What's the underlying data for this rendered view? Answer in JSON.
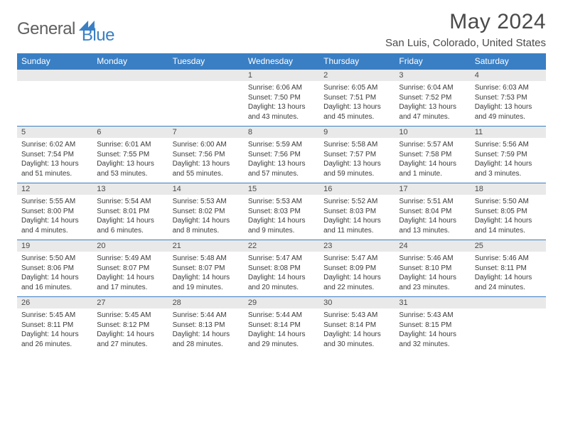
{
  "brand": {
    "part1": "General",
    "part2": "Blue"
  },
  "title": "May 2024",
  "location": "San Luis, Colorado, United States",
  "colors": {
    "accent": "#3a7fc4",
    "header_text": "#ffffff",
    "daynum_bg": "#e9e9e9",
    "text": "#4a4a4a",
    "body_text": "#3a3a3a",
    "background": "#ffffff"
  },
  "typography": {
    "title_fontsize": 30,
    "location_fontsize": 15,
    "weekday_fontsize": 12,
    "daynum_fontsize": 11,
    "body_fontsize": 10
  },
  "weekdays": [
    "Sunday",
    "Monday",
    "Tuesday",
    "Wednesday",
    "Thursday",
    "Friday",
    "Saturday"
  ],
  "layout": {
    "first_weekday_index": 3,
    "days_in_month": 31,
    "weeks": 5
  },
  "days": {
    "1": {
      "sunrise": "6:06 AM",
      "sunset": "7:50 PM",
      "daylight": "13 hours and 43 minutes."
    },
    "2": {
      "sunrise": "6:05 AM",
      "sunset": "7:51 PM",
      "daylight": "13 hours and 45 minutes."
    },
    "3": {
      "sunrise": "6:04 AM",
      "sunset": "7:52 PM",
      "daylight": "13 hours and 47 minutes."
    },
    "4": {
      "sunrise": "6:03 AM",
      "sunset": "7:53 PM",
      "daylight": "13 hours and 49 minutes."
    },
    "5": {
      "sunrise": "6:02 AM",
      "sunset": "7:54 PM",
      "daylight": "13 hours and 51 minutes."
    },
    "6": {
      "sunrise": "6:01 AM",
      "sunset": "7:55 PM",
      "daylight": "13 hours and 53 minutes."
    },
    "7": {
      "sunrise": "6:00 AM",
      "sunset": "7:56 PM",
      "daylight": "13 hours and 55 minutes."
    },
    "8": {
      "sunrise": "5:59 AM",
      "sunset": "7:56 PM",
      "daylight": "13 hours and 57 minutes."
    },
    "9": {
      "sunrise": "5:58 AM",
      "sunset": "7:57 PM",
      "daylight": "13 hours and 59 minutes."
    },
    "10": {
      "sunrise": "5:57 AM",
      "sunset": "7:58 PM",
      "daylight": "14 hours and 1 minute."
    },
    "11": {
      "sunrise": "5:56 AM",
      "sunset": "7:59 PM",
      "daylight": "14 hours and 3 minutes."
    },
    "12": {
      "sunrise": "5:55 AM",
      "sunset": "8:00 PM",
      "daylight": "14 hours and 4 minutes."
    },
    "13": {
      "sunrise": "5:54 AM",
      "sunset": "8:01 PM",
      "daylight": "14 hours and 6 minutes."
    },
    "14": {
      "sunrise": "5:53 AM",
      "sunset": "8:02 PM",
      "daylight": "14 hours and 8 minutes."
    },
    "15": {
      "sunrise": "5:53 AM",
      "sunset": "8:03 PM",
      "daylight": "14 hours and 9 minutes."
    },
    "16": {
      "sunrise": "5:52 AM",
      "sunset": "8:03 PM",
      "daylight": "14 hours and 11 minutes."
    },
    "17": {
      "sunrise": "5:51 AM",
      "sunset": "8:04 PM",
      "daylight": "14 hours and 13 minutes."
    },
    "18": {
      "sunrise": "5:50 AM",
      "sunset": "8:05 PM",
      "daylight": "14 hours and 14 minutes."
    },
    "19": {
      "sunrise": "5:50 AM",
      "sunset": "8:06 PM",
      "daylight": "14 hours and 16 minutes."
    },
    "20": {
      "sunrise": "5:49 AM",
      "sunset": "8:07 PM",
      "daylight": "14 hours and 17 minutes."
    },
    "21": {
      "sunrise": "5:48 AM",
      "sunset": "8:07 PM",
      "daylight": "14 hours and 19 minutes."
    },
    "22": {
      "sunrise": "5:47 AM",
      "sunset": "8:08 PM",
      "daylight": "14 hours and 20 minutes."
    },
    "23": {
      "sunrise": "5:47 AM",
      "sunset": "8:09 PM",
      "daylight": "14 hours and 22 minutes."
    },
    "24": {
      "sunrise": "5:46 AM",
      "sunset": "8:10 PM",
      "daylight": "14 hours and 23 minutes."
    },
    "25": {
      "sunrise": "5:46 AM",
      "sunset": "8:11 PM",
      "daylight": "14 hours and 24 minutes."
    },
    "26": {
      "sunrise": "5:45 AM",
      "sunset": "8:11 PM",
      "daylight": "14 hours and 26 minutes."
    },
    "27": {
      "sunrise": "5:45 AM",
      "sunset": "8:12 PM",
      "daylight": "14 hours and 27 minutes."
    },
    "28": {
      "sunrise": "5:44 AM",
      "sunset": "8:13 PM",
      "daylight": "14 hours and 28 minutes."
    },
    "29": {
      "sunrise": "5:44 AM",
      "sunset": "8:14 PM",
      "daylight": "14 hours and 29 minutes."
    },
    "30": {
      "sunrise": "5:43 AM",
      "sunset": "8:14 PM",
      "daylight": "14 hours and 30 minutes."
    },
    "31": {
      "sunrise": "5:43 AM",
      "sunset": "8:15 PM",
      "daylight": "14 hours and 32 minutes."
    }
  },
  "labels": {
    "sunrise": "Sunrise:",
    "sunset": "Sunset:",
    "daylight": "Daylight:"
  }
}
